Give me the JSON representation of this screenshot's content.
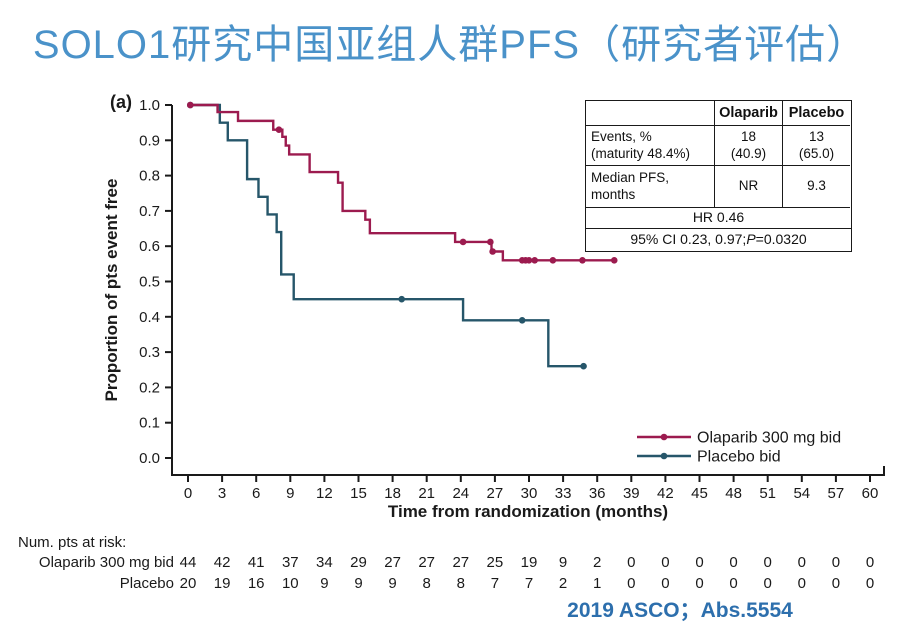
{
  "header": {
    "title": "SOLO1研究中国亚组人群PFS（研究者评估）"
  },
  "footer": {
    "text": "2019 ASCO；Abs.5554"
  },
  "stats_table": {
    "col_headers": [
      "Olaparib",
      "Placebo"
    ],
    "rows": [
      {
        "label_l1": "Events, %",
        "label_l2": "(maturity 48.4%)",
        "ola_l1": "18",
        "ola_l2": "(40.9)",
        "pla_l1": "13",
        "pla_l2": "(65.0)"
      },
      {
        "label_l1": "Median PFS,",
        "label_l2": "months",
        "ola_l1": "NR",
        "pla_l1": "9.3"
      }
    ],
    "hr_text": "HR 0.46",
    "ci_prefix": "95% CI 0.23, 0.97; ",
    "ci_p": "P",
    "ci_suffix": "=0.0320"
  },
  "chart_data": {
    "type": "line",
    "subtype": "kaplan-meier-step",
    "panel_label": "(a)",
    "xlabel": "Time from randomization (months)",
    "ylabel": "Proportion of pts event free",
    "xlim": [
      0,
      60
    ],
    "ylim": [
      0.0,
      1.0
    ],
    "grid": false,
    "legend_position": "inside lower right",
    "xticks": [
      0,
      3,
      6,
      9,
      12,
      15,
      18,
      21,
      24,
      27,
      30,
      33,
      36,
      39,
      42,
      45,
      48,
      51,
      54,
      57,
      60
    ],
    "ytick_labels": [
      "0.0",
      "0.1",
      "0.2",
      "0.3",
      "0.4",
      "0.5",
      "0.6",
      "0.7",
      "0.8",
      "0.9",
      "1.0"
    ],
    "series": [
      {
        "name": "Olaparib 300 mg bid",
        "color": "#9C1B4F",
        "steps": [
          [
            0,
            1.0
          ],
          [
            2.6,
            0.98
          ],
          [
            4.4,
            0.955
          ],
          [
            7.5,
            0.93
          ],
          [
            8.3,
            0.91
          ],
          [
            8.6,
            0.885
          ],
          [
            8.9,
            0.86
          ],
          [
            10.7,
            0.81
          ],
          [
            13.2,
            0.78
          ],
          [
            13.6,
            0.7
          ],
          [
            15.6,
            0.675
          ],
          [
            16.0,
            0.637
          ],
          [
            23.5,
            0.612
          ],
          [
            26.7,
            0.585
          ],
          [
            27.7,
            0.56
          ]
        ],
        "end_x": 37.5,
        "start_dot": [
          0.2,
          1.0
        ],
        "end_dot": [
          37.5,
          0.56
        ],
        "censor_marks": [
          [
            8.0,
            0.93
          ],
          [
            24.2,
            0.612
          ],
          [
            26.6,
            0.612
          ],
          [
            26.8,
            0.585
          ],
          [
            29.4,
            0.56
          ],
          [
            29.7,
            0.56
          ],
          [
            30.0,
            0.56
          ],
          [
            30.5,
            0.56
          ],
          [
            32.1,
            0.56
          ],
          [
            34.7,
            0.56
          ]
        ]
      },
      {
        "name": "Placebo bid",
        "color": "#26566A",
        "steps": [
          [
            0,
            1.0
          ],
          [
            2.8,
            0.95
          ],
          [
            3.5,
            0.9
          ],
          [
            5.2,
            0.79
          ],
          [
            6.2,
            0.74
          ],
          [
            7.0,
            0.69
          ],
          [
            7.8,
            0.64
          ],
          [
            8.2,
            0.52
          ],
          [
            9.3,
            0.45
          ],
          [
            24.2,
            0.39
          ],
          [
            31.7,
            0.26
          ]
        ],
        "end_x": 34.8,
        "start_dot": [
          0.2,
          1.0
        ],
        "end_dot": [
          34.8,
          0.26
        ],
        "censor_marks": [
          [
            18.8,
            0.45
          ],
          [
            29.4,
            0.39
          ]
        ]
      }
    ],
    "at_risk": {
      "heading": "Num. pts at risk:",
      "rows": [
        {
          "label": "Olaparib 300 mg bid",
          "values": [
            44,
            42,
            41,
            37,
            34,
            29,
            27,
            27,
            27,
            25,
            19,
            9,
            2,
            0,
            0,
            0,
            0,
            0,
            0,
            0,
            0
          ]
        },
        {
          "label": "Placebo",
          "values": [
            20,
            19,
            16,
            10,
            9,
            9,
            9,
            8,
            8,
            7,
            7,
            2,
            1,
            0,
            0,
            0,
            0,
            0,
            0,
            0,
            0
          ]
        }
      ]
    }
  }
}
